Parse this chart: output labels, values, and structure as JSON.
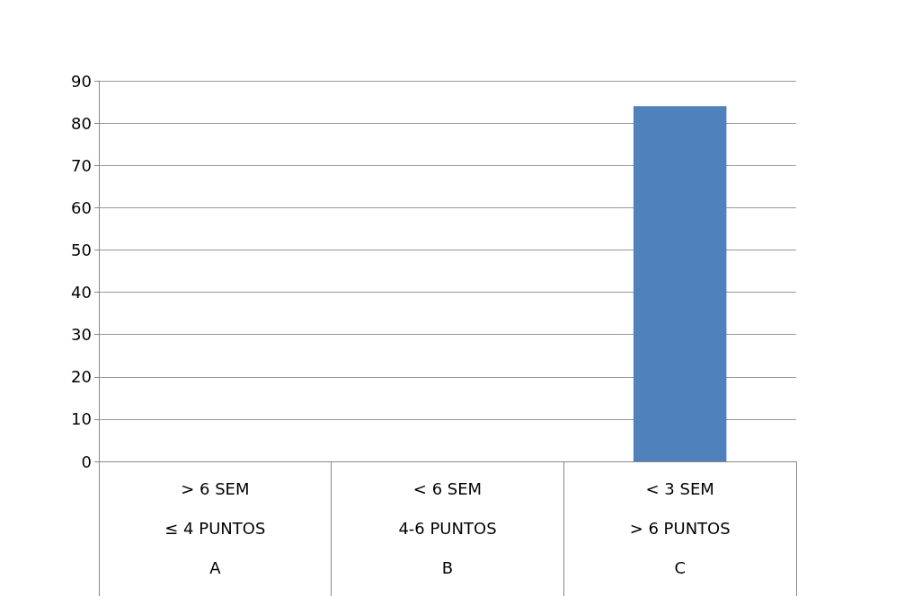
{
  "chart_data": {
    "type": "bar",
    "categories": [
      "> 6 SEM\n≤ 4 PUNTOS\nA",
      "< 6 SEM\n4-6 PUNTOS\nB",
      "< 3 SEM\n> 6 PUNTOS\nC"
    ],
    "values": [
      0,
      0,
      84
    ],
    "color": "#4f81bd",
    "ylim": [
      0,
      90
    ],
    "yticks": [
      0,
      10,
      20,
      30,
      40,
      50,
      60,
      70,
      80,
      90
    ],
    "grid": true
  }
}
